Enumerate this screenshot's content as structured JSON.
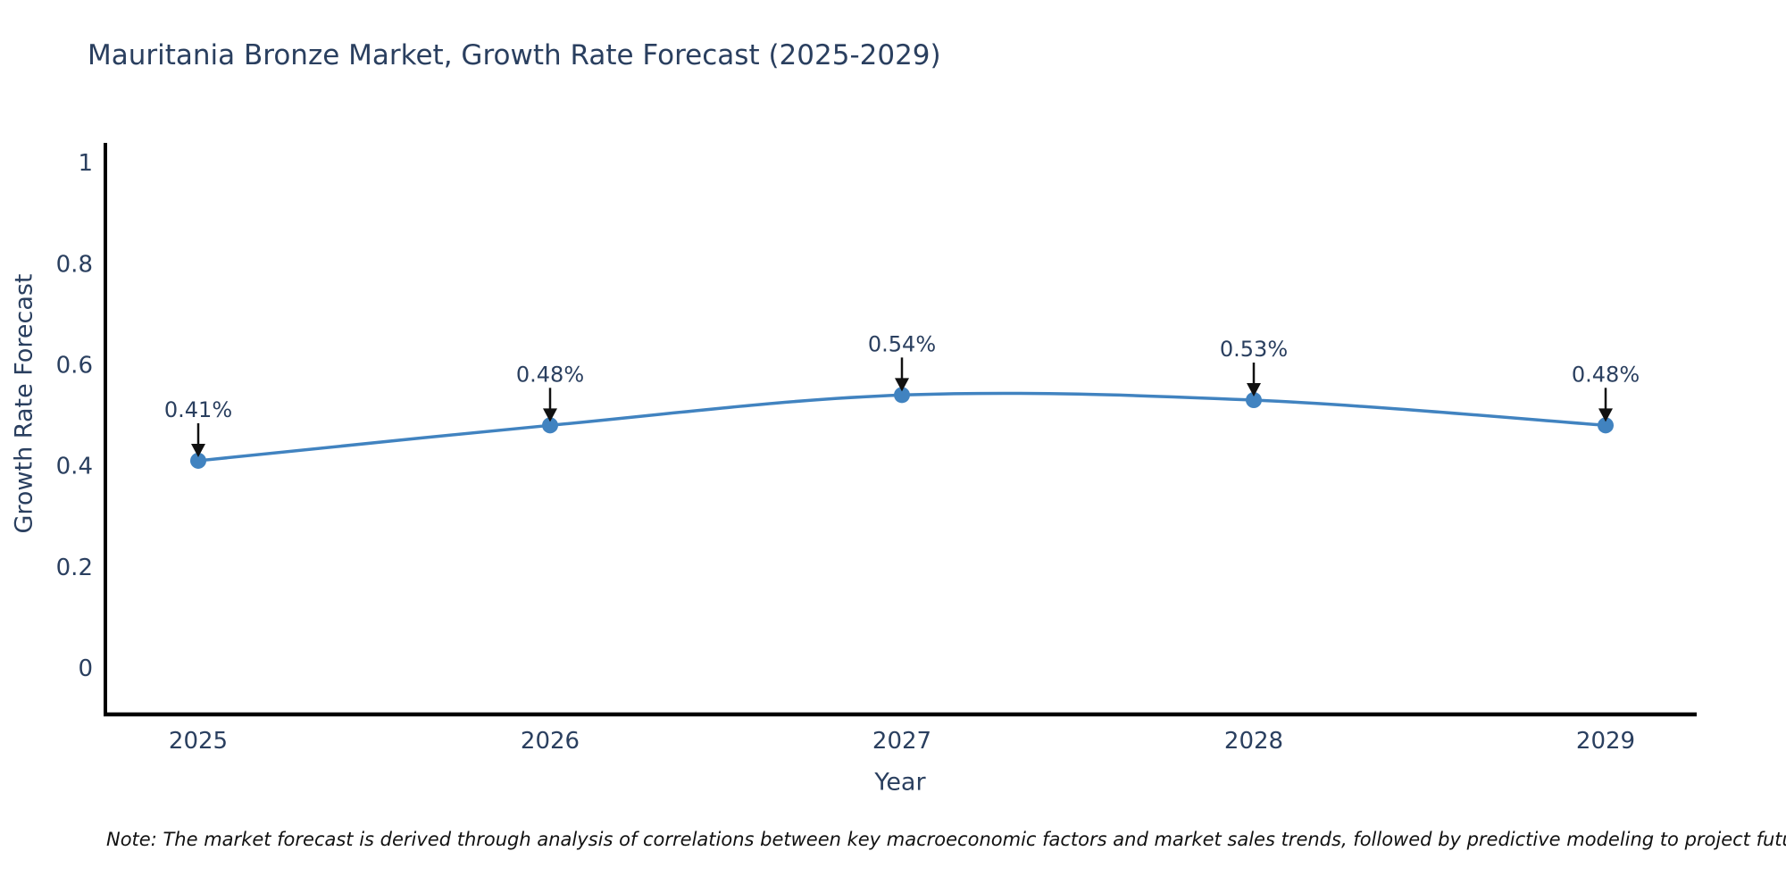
{
  "chart_data": {
    "type": "line",
    "title": "Mauritania Bronze Market, Growth Rate Forecast (2025-2029)",
    "xlabel": "Year",
    "ylabel": "Growth Rate Forecast",
    "categories": [
      "2025",
      "2026",
      "2027",
      "2028",
      "2029"
    ],
    "series": [
      {
        "name": "Growth Rate Forecast",
        "values": [
          0.41,
          0.48,
          0.54,
          0.53,
          0.48
        ]
      }
    ],
    "point_labels": [
      "0.41%",
      "0.48%",
      "0.54%",
      "0.53%",
      "0.48%"
    ],
    "yticks": [
      0,
      0.2,
      0.4,
      0.6,
      0.8,
      1
    ],
    "ylim": [
      -0.09,
      1.04
    ],
    "grid": false,
    "legend_position": "none",
    "line_shape": "spline",
    "colors": {
      "line": "#4183c0",
      "marker": "#4183c0",
      "annotation_arrow": "#111111",
      "axis_line": "#000000"
    }
  },
  "note": "Note: The market forecast is derived through analysis of correlations between key macroeconomic factors and market sales trends, followed by predictive modeling to project future sales"
}
